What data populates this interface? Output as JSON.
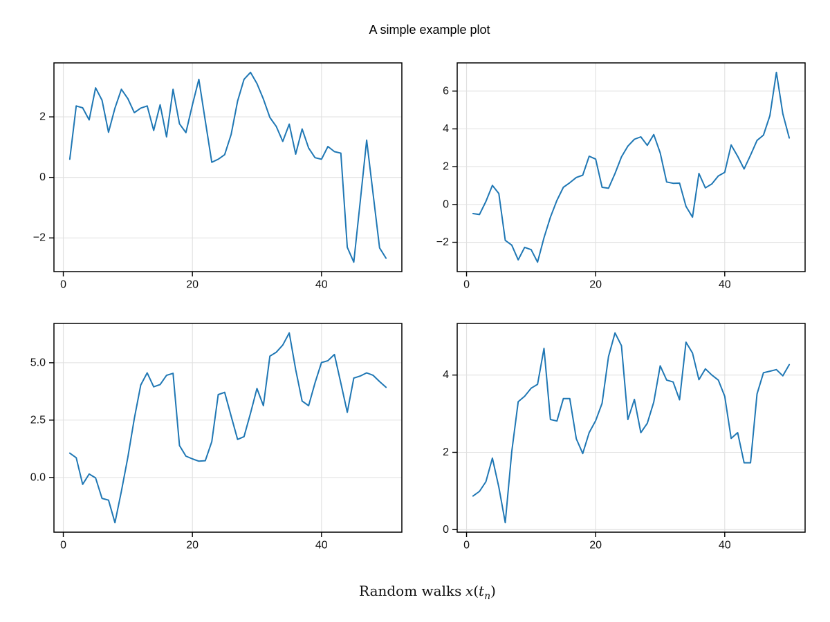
{
  "title": "A simple example plot",
  "xlabel": {
    "text": "Random walks",
    "math_var": "x",
    "paren_open": "(",
    "math_arg": "t",
    "math_sub": "n",
    "paren_close": ")"
  },
  "style": {
    "line_color": "#1f77b4",
    "grid_color": "#e0e0e0",
    "spine_color": "#000000",
    "text_color": "#111111",
    "background": "#ffffff"
  },
  "chart_data": [
    {
      "type": "line",
      "position": "top-left",
      "x_range": [
        1,
        50
      ],
      "xticks": {
        "values": [
          0,
          20,
          40
        ],
        "labels": [
          "0",
          "20",
          "40"
        ]
      },
      "yticks": {
        "values": [
          2,
          0,
          -2
        ],
        "labels": [
          "2",
          "0",
          "−2"
        ]
      },
      "grid": true,
      "y": [
        0.6,
        2.36,
        2.3,
        1.9,
        2.96,
        2.55,
        1.49,
        2.29,
        2.91,
        2.6,
        2.14,
        2.29,
        2.36,
        1.55,
        2.4,
        1.34,
        2.91,
        1.77,
        1.48,
        2.4,
        3.24,
        1.87,
        0.5,
        0.6,
        0.75,
        1.42,
        2.52,
        3.24,
        3.47,
        3.1,
        2.59,
        1.98,
        1.68,
        1.19,
        1.76,
        0.77,
        1.6,
        0.97,
        0.65,
        0.6,
        1.02,
        0.85,
        0.8,
        -2.31,
        -2.8,
        -0.8,
        1.23,
        -0.56,
        -2.33,
        -2.67
      ]
    },
    {
      "type": "line",
      "position": "top-right",
      "x_range": [
        1,
        50
      ],
      "xticks": {
        "values": [
          0,
          20,
          40
        ],
        "labels": [
          "0",
          "20",
          "40"
        ]
      },
      "yticks": {
        "values": [
          6,
          4,
          2,
          0,
          -2
        ],
        "labels": [
          "6",
          "4",
          "2",
          "0",
          "−2"
        ]
      },
      "grid": true,
      "y": [
        -0.48,
        -0.53,
        0.16,
        1.01,
        0.58,
        -1.9,
        -2.15,
        -2.93,
        -2.27,
        -2.39,
        -3.05,
        -1.76,
        -0.67,
        0.22,
        0.91,
        1.15,
        1.43,
        1.55,
        2.55,
        2.4,
        0.91,
        0.86,
        1.64,
        2.52,
        3.09,
        3.45,
        3.58,
        3.13,
        3.7,
        2.73,
        1.19,
        1.12,
        1.13,
        -0.1,
        -0.67,
        1.64,
        0.88,
        1.09,
        1.51,
        1.7,
        3.15,
        2.55,
        1.88,
        2.61,
        3.39,
        3.67,
        4.7,
        6.99,
        4.8,
        3.52
      ]
    },
    {
      "type": "line",
      "position": "bottom-left",
      "x_range": [
        1,
        50
      ],
      "xticks": {
        "values": [
          0,
          20,
          40
        ],
        "labels": [
          "0",
          "20",
          "40"
        ]
      },
      "yticks": {
        "values": [
          5.0,
          2.5,
          0.0
        ],
        "labels": [
          "5.0",
          "2.5",
          "0.0"
        ]
      },
      "grid": true,
      "y": [
        1.06,
        0.86,
        -0.3,
        0.15,
        -0.02,
        -0.91,
        -0.99,
        -1.97,
        -0.6,
        0.89,
        2.57,
        4.03,
        4.56,
        3.95,
        4.05,
        4.45,
        4.54,
        1.39,
        0.93,
        0.81,
        0.71,
        0.73,
        1.56,
        3.61,
        3.71,
        2.67,
        1.66,
        1.78,
        2.8,
        3.88,
        3.13,
        5.29,
        5.46,
        5.77,
        6.3,
        4.7,
        3.33,
        3.13,
        4.13,
        5.01,
        5.09,
        5.36,
        4.11,
        2.84,
        4.33,
        4.42,
        4.56,
        4.45,
        4.18,
        3.93
      ]
    },
    {
      "type": "line",
      "position": "bottom-right",
      "x_range": [
        1,
        50
      ],
      "xticks": {
        "values": [
          0,
          20,
          40
        ],
        "labels": [
          "0",
          "20",
          "40"
        ]
      },
      "yticks": {
        "values": [
          4,
          2,
          0
        ],
        "labels": [
          "4",
          "2",
          "0"
        ]
      },
      "grid": true,
      "y": [
        0.87,
        0.99,
        1.24,
        1.85,
        1.1,
        0.18,
        2.02,
        3.31,
        3.45,
        3.66,
        3.76,
        4.69,
        2.85,
        2.81,
        3.39,
        3.39,
        2.35,
        1.97,
        2.51,
        2.82,
        3.27,
        4.48,
        5.09,
        4.76,
        2.85,
        3.37,
        2.51,
        2.75,
        3.3,
        4.24,
        3.87,
        3.82,
        3.36,
        4.85,
        4.57,
        3.88,
        4.16,
        4.0,
        3.87,
        3.45,
        2.36,
        2.51,
        1.73,
        1.73,
        3.51,
        4.06,
        4.1,
        4.14,
        3.98,
        4.27
      ]
    }
  ]
}
